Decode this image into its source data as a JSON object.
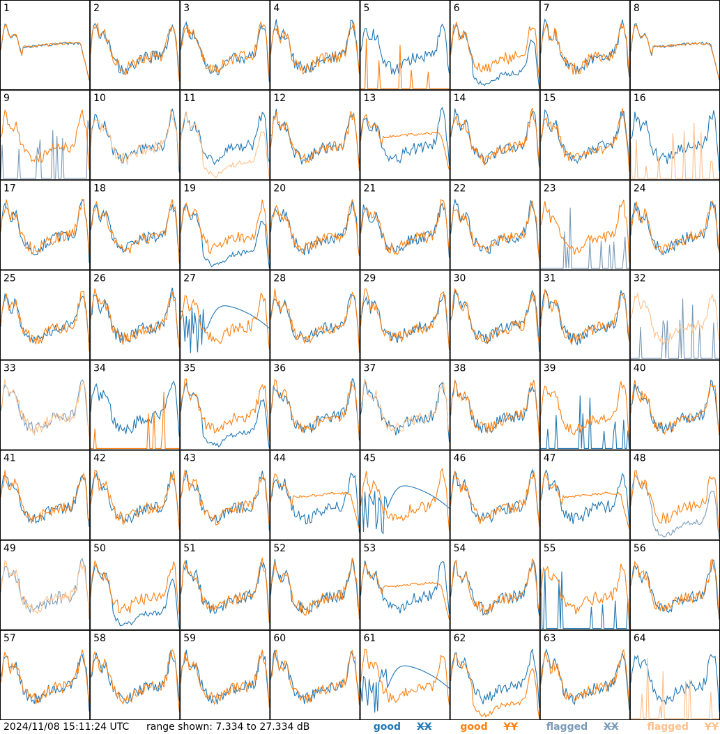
{
  "footer": {
    "timestamp": "2024/11/08 15:11:24 UTC",
    "range_text": "range shown: 7.334 to 27.334 dB",
    "legend": {
      "good_label": "good",
      "flagged_label": "flagged",
      "xx": "XX",
      "yy": "YY"
    }
  },
  "colors": {
    "good_xx": "#1f77b4",
    "good_yy": "#ff7f0e",
    "flagged_xx": "#7a9ab8",
    "flagged_yy": "#ffbf8a",
    "border": "#000000"
  },
  "chart_data": {
    "type": "line",
    "layout": "small-multiples 8x8",
    "ylim_db": [
      7.334,
      27.334
    ],
    "grid": false,
    "legend_placement": "bottom-right",
    "panels": [
      {
        "id": 1,
        "xx": "good",
        "yy": "good",
        "xx_shape": "flat",
        "yy_shape": "flat"
      },
      {
        "id": 2,
        "xx": "good",
        "yy": "good",
        "xx_shape": "normal",
        "yy_shape": "normal"
      },
      {
        "id": 3,
        "xx": "good",
        "yy": "good",
        "xx_shape": "normal",
        "yy_shape": "normal"
      },
      {
        "id": 4,
        "xx": "good",
        "yy": "good",
        "xx_shape": "normal",
        "yy_shape": "normal"
      },
      {
        "id": 5,
        "xx": "good",
        "yy": "good",
        "xx_shape": "normal",
        "yy_shape": "spikes"
      },
      {
        "id": 6,
        "xx": "good",
        "yy": "good",
        "xx_shape": "low",
        "yy_shape": "normal"
      },
      {
        "id": 7,
        "xx": "good",
        "yy": "good",
        "xx_shape": "normal",
        "yy_shape": "normal"
      },
      {
        "id": 8,
        "xx": "good",
        "yy": "good",
        "xx_shape": "flat",
        "yy_shape": "flat"
      },
      {
        "id": 9,
        "xx": "flagged",
        "yy": "good",
        "xx_shape": "spikes",
        "yy_shape": "normal"
      },
      {
        "id": 10,
        "xx": "good",
        "yy": "flagged",
        "xx_shape": "normal",
        "yy_shape": "normal"
      },
      {
        "id": 11,
        "xx": "good",
        "yy": "flagged",
        "xx_shape": "normal",
        "yy_shape": "low"
      },
      {
        "id": 12,
        "xx": "good",
        "yy": "good",
        "xx_shape": "normal",
        "yy_shape": "normal"
      },
      {
        "id": 13,
        "xx": "good",
        "yy": "good",
        "xx_shape": "normal",
        "yy_shape": "flat"
      },
      {
        "id": 14,
        "xx": "good",
        "yy": "good",
        "xx_shape": "normal",
        "yy_shape": "normal"
      },
      {
        "id": 15,
        "xx": "good",
        "yy": "good",
        "xx_shape": "normal",
        "yy_shape": "normal"
      },
      {
        "id": 16,
        "xx": "good",
        "yy": "flagged",
        "xx_shape": "normal",
        "yy_shape": "spikes"
      },
      {
        "id": 17,
        "xx": "good",
        "yy": "good",
        "xx_shape": "normal",
        "yy_shape": "normal"
      },
      {
        "id": 18,
        "xx": "good",
        "yy": "good",
        "xx_shape": "normal",
        "yy_shape": "normal"
      },
      {
        "id": 19,
        "xx": "good",
        "yy": "good",
        "xx_shape": "low",
        "yy_shape": "normal"
      },
      {
        "id": 20,
        "xx": "good",
        "yy": "good",
        "xx_shape": "normal",
        "yy_shape": "normal"
      },
      {
        "id": 21,
        "xx": "good",
        "yy": "good",
        "xx_shape": "normal",
        "yy_shape": "normal"
      },
      {
        "id": 22,
        "xx": "good",
        "yy": "good",
        "xx_shape": "normal",
        "yy_shape": "normal"
      },
      {
        "id": 23,
        "xx": "flagged",
        "yy": "good",
        "xx_shape": "spikes",
        "yy_shape": "normal"
      },
      {
        "id": 24,
        "xx": "good",
        "yy": "good",
        "xx_shape": "normal",
        "yy_shape": "normal"
      },
      {
        "id": 25,
        "xx": "good",
        "yy": "good",
        "xx_shape": "normal",
        "yy_shape": "normal"
      },
      {
        "id": 26,
        "xx": "good",
        "yy": "good",
        "xx_shape": "normal",
        "yy_shape": "normal"
      },
      {
        "id": 27,
        "xx": "good",
        "yy": "good",
        "xx_shape": "dip",
        "yy_shape": "normal"
      },
      {
        "id": 28,
        "xx": "good",
        "yy": "good",
        "xx_shape": "normal",
        "yy_shape": "normal"
      },
      {
        "id": 29,
        "xx": "good",
        "yy": "good",
        "xx_shape": "normal",
        "yy_shape": "normal"
      },
      {
        "id": 30,
        "xx": "good",
        "yy": "good",
        "xx_shape": "normal",
        "yy_shape": "normal"
      },
      {
        "id": 31,
        "xx": "good",
        "yy": "good",
        "xx_shape": "normal",
        "yy_shape": "normal"
      },
      {
        "id": 32,
        "xx": "flagged",
        "yy": "flagged",
        "xx_shape": "spikes",
        "yy_shape": "normal"
      },
      {
        "id": 33,
        "xx": "flagged",
        "yy": "flagged",
        "xx_shape": "normal",
        "yy_shape": "normal"
      },
      {
        "id": 34,
        "xx": "good",
        "yy": "good",
        "xx_shape": "normal",
        "yy_shape": "spikes"
      },
      {
        "id": 35,
        "xx": "good",
        "yy": "good",
        "xx_shape": "low",
        "yy_shape": "normal"
      },
      {
        "id": 36,
        "xx": "good",
        "yy": "good",
        "xx_shape": "normal",
        "yy_shape": "normal"
      },
      {
        "id": 37,
        "xx": "good",
        "yy": "flagged",
        "xx_shape": "normal",
        "yy_shape": "normal"
      },
      {
        "id": 38,
        "xx": "good",
        "yy": "good",
        "xx_shape": "normal",
        "yy_shape": "normal"
      },
      {
        "id": 39,
        "xx": "good",
        "yy": "good",
        "xx_shape": "spikes",
        "yy_shape": "normal"
      },
      {
        "id": 40,
        "xx": "good",
        "yy": "good",
        "xx_shape": "normal",
        "yy_shape": "normal"
      },
      {
        "id": 41,
        "xx": "good",
        "yy": "good",
        "xx_shape": "normal",
        "yy_shape": "normal"
      },
      {
        "id": 42,
        "xx": "good",
        "yy": "good",
        "xx_shape": "normal",
        "yy_shape": "normal"
      },
      {
        "id": 43,
        "xx": "good",
        "yy": "good",
        "xx_shape": "normal",
        "yy_shape": "normal"
      },
      {
        "id": 44,
        "xx": "good",
        "yy": "good",
        "xx_shape": "normal",
        "yy_shape": "flat"
      },
      {
        "id": 45,
        "xx": "good",
        "yy": "good",
        "xx_shape": "dip",
        "yy_shape": "normal"
      },
      {
        "id": 46,
        "xx": "good",
        "yy": "good",
        "xx_shape": "normal",
        "yy_shape": "normal"
      },
      {
        "id": 47,
        "xx": "good",
        "yy": "good",
        "xx_shape": "normal",
        "yy_shape": "flat"
      },
      {
        "id": 48,
        "xx": "flagged",
        "yy": "good",
        "xx_shape": "low",
        "yy_shape": "normal"
      },
      {
        "id": 49,
        "xx": "flagged",
        "yy": "flagged",
        "xx_shape": "normal",
        "yy_shape": "normal"
      },
      {
        "id": 50,
        "xx": "good",
        "yy": "good",
        "xx_shape": "low",
        "yy_shape": "normal"
      },
      {
        "id": 51,
        "xx": "good",
        "yy": "good",
        "xx_shape": "normal",
        "yy_shape": "normal"
      },
      {
        "id": 52,
        "xx": "good",
        "yy": "good",
        "xx_shape": "normal",
        "yy_shape": "normal"
      },
      {
        "id": 53,
        "xx": "good",
        "yy": "good",
        "xx_shape": "normal",
        "yy_shape": "flat"
      },
      {
        "id": 54,
        "xx": "good",
        "yy": "good",
        "xx_shape": "normal",
        "yy_shape": "normal"
      },
      {
        "id": 55,
        "xx": "good",
        "yy": "good",
        "xx_shape": "spikes",
        "yy_shape": "normal"
      },
      {
        "id": 56,
        "xx": "good",
        "yy": "good",
        "xx_shape": "normal",
        "yy_shape": "normal"
      },
      {
        "id": 57,
        "xx": "good",
        "yy": "good",
        "xx_shape": "normal",
        "yy_shape": "normal"
      },
      {
        "id": 58,
        "xx": "good",
        "yy": "good",
        "xx_shape": "normal",
        "yy_shape": "normal"
      },
      {
        "id": 59,
        "xx": "good",
        "yy": "good",
        "xx_shape": "normal",
        "yy_shape": "normal"
      },
      {
        "id": 60,
        "xx": "good",
        "yy": "good",
        "xx_shape": "normal",
        "yy_shape": "normal"
      },
      {
        "id": 61,
        "xx": "good",
        "yy": "good",
        "xx_shape": "dip",
        "yy_shape": "normal"
      },
      {
        "id": 62,
        "xx": "good",
        "yy": "good",
        "xx_shape": "normal",
        "yy_shape": "low"
      },
      {
        "id": 63,
        "xx": "good",
        "yy": "good",
        "xx_shape": "normal",
        "yy_shape": "normal"
      },
      {
        "id": 64,
        "xx": "good",
        "yy": "flagged",
        "xx_shape": "normal",
        "yy_shape": "spikes"
      }
    ]
  }
}
